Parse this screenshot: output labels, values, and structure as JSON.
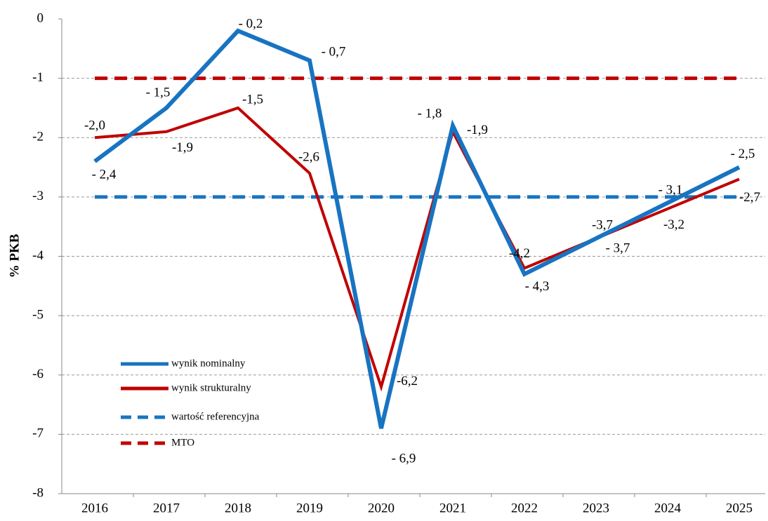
{
  "chart_data": {
    "type": "line",
    "y_label": "% PKB",
    "categories": [
      "2016",
      "2017",
      "2018",
      "2019",
      "2020",
      "2021",
      "2022",
      "2023",
      "2024",
      "2025"
    ],
    "series": [
      {
        "name": "wynik nominalny",
        "color": "#1874c1",
        "dash": false,
        "values": [
          -2.4,
          -1.5,
          -0.2,
          -0.7,
          -6.9,
          -1.8,
          -4.3,
          -3.7,
          -3.1,
          -2.5
        ],
        "value_labels": [
          "- 2,4",
          "- 1,5",
          "- 0,2",
          "- 0,7",
          "- 6,9",
          "- 1,8",
          "- 4,3",
          "- 3,7",
          "- 3,1",
          "- 2,5"
        ]
      },
      {
        "name": "wynik strukturalny",
        "color": "#c00000",
        "dash": false,
        "values": [
          -2.0,
          -1.9,
          -1.5,
          -2.6,
          -6.2,
          -1.9,
          -4.2,
          -3.7,
          -3.2,
          -2.7
        ],
        "value_labels": [
          "-2,0",
          "-1,9",
          "-1,5",
          "-2,6",
          "-6,2",
          "-1,9",
          "-4,2",
          "-3,7",
          "-3,2",
          "-2,7"
        ]
      },
      {
        "name": "wartość referencyjna",
        "color": "#1874c1",
        "dash": true,
        "values": [
          -3,
          -3,
          -3,
          -3,
          -3,
          -3,
          -3,
          -3,
          -3,
          -3
        ]
      },
      {
        "name": "MTO",
        "color": "#c00000",
        "dash": true,
        "values": [
          -1,
          -1,
          -1,
          -1,
          -1,
          -1,
          -1,
          -1,
          -1,
          -1
        ]
      }
    ],
    "ylim": [
      -8,
      0
    ],
    "yticks": [
      0,
      -1,
      -2,
      -3,
      -4,
      -5,
      -6,
      -7,
      -8
    ],
    "grid": true
  }
}
